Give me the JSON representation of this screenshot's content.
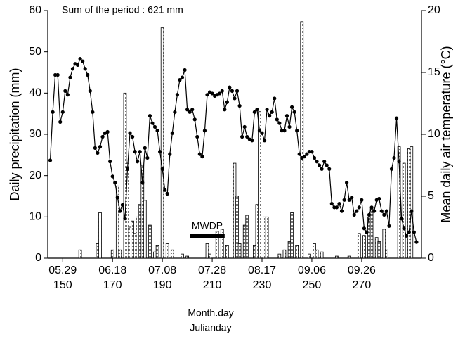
{
  "chart_data": {
    "type": "bar-line",
    "annotation": "Sum of the period : 621 mm",
    "period": {
      "label": "MWDP",
      "start": 201,
      "end": 215
    },
    "xlabel": "Month.day",
    "xlabel2": "Julianday",
    "ylabel": "Daily precipitation (mm)",
    "y2label": "Mean daily air temperature (°C)",
    "xlim": [
      144,
      294
    ],
    "ylim": [
      0,
      60
    ],
    "yticks": [
      0,
      10,
      20,
      30,
      40,
      50,
      60
    ],
    "y2lim": [
      0,
      20
    ],
    "y2ticks": [
      0,
      5,
      10,
      15,
      20
    ],
    "xticks": [
      {
        "value": 150,
        "label": "05.29"
      },
      {
        "value": 170,
        "label": "06.18"
      },
      {
        "value": 190,
        "label": "07.08"
      },
      {
        "value": 210,
        "label": "07.28"
      },
      {
        "value": 230,
        "label": "08.17"
      },
      {
        "value": 250,
        "label": "09.06"
      },
      {
        "value": 270,
        "label": "09.26"
      }
    ],
    "julian_ticks": [
      150,
      170,
      190,
      210,
      230,
      250,
      270
    ],
    "x": [
      145,
      146,
      147,
      148,
      149,
      150,
      151,
      152,
      153,
      154,
      155,
      156,
      157,
      158,
      159,
      160,
      161,
      162,
      163,
      164,
      165,
      166,
      167,
      168,
      169,
      170,
      171,
      172,
      173,
      174,
      175,
      176,
      177,
      178,
      179,
      180,
      181,
      182,
      183,
      184,
      185,
      186,
      187,
      188,
      189,
      190,
      191,
      192,
      193,
      194,
      195,
      196,
      197,
      198,
      199,
      200,
      201,
      202,
      203,
      204,
      205,
      206,
      207,
      208,
      209,
      210,
      211,
      212,
      213,
      214,
      215,
      216,
      217,
      218,
      219,
      220,
      221,
      222,
      223,
      224,
      225,
      226,
      227,
      228,
      229,
      230,
      231,
      232,
      233,
      234,
      235,
      236,
      237,
      238,
      239,
      240,
      241,
      242,
      243,
      244,
      245,
      246,
      247,
      248,
      249,
      250,
      251,
      252,
      253,
      254,
      255,
      256,
      257,
      258,
      259,
      260,
      261,
      262,
      263,
      264,
      265,
      266,
      267,
      268,
      269,
      270,
      271,
      272,
      273,
      274,
      275,
      276,
      277,
      278,
      279,
      280,
      281,
      282,
      283,
      284,
      285,
      286,
      287,
      288,
      289,
      290,
      291,
      292
    ],
    "series": [
      {
        "name": "Daily precipitation",
        "kind": "bar",
        "color": "#888888",
        "values": [
          0,
          0,
          0,
          0,
          0,
          0,
          0,
          0,
          0,
          0,
          0,
          0,
          2,
          0,
          0,
          0,
          0,
          0,
          0,
          3.5,
          11,
          0,
          0,
          0,
          0,
          2,
          0,
          17.5,
          2,
          0,
          40,
          23,
          7.5,
          9,
          6,
          10,
          13,
          22.5,
          14,
          0,
          8,
          0,
          1.5,
          3,
          0,
          55.8,
          0,
          3.5,
          0,
          2,
          0,
          0,
          0,
          1,
          0,
          0.5,
          0,
          0,
          0,
          0,
          0,
          0,
          0,
          3.5,
          1,
          0,
          0,
          6.5,
          0,
          7,
          0,
          3,
          0,
          0,
          23,
          15,
          3.5,
          0,
          8,
          10.5,
          0,
          0,
          3,
          13,
          35.5,
          0,
          10,
          10,
          0,
          0,
          0,
          0,
          1,
          0,
          2,
          0,
          4,
          11,
          0,
          3,
          0,
          57.3,
          0,
          0,
          1,
          0,
          3.5,
          2,
          0,
          1.5,
          0,
          0,
          0,
          0,
          0,
          0.5,
          0,
          0,
          0,
          0,
          0.5,
          0,
          0,
          0,
          6,
          0,
          5.5,
          0,
          10,
          12,
          0,
          5,
          4,
          0,
          7,
          2,
          0,
          0,
          0,
          0,
          27,
          0,
          23,
          0,
          26.5,
          27,
          0,
          0
        ]
      },
      {
        "name": "Mean daily air temperature",
        "kind": "line",
        "axis": "y2",
        "color": "#000000",
        "values": [
          7.9,
          11.8,
          14.8,
          14.8,
          11.0,
          11.8,
          13.5,
          13.2,
          14.6,
          15.3,
          15.7,
          15.6,
          16.1,
          15.9,
          15.3,
          14.8,
          13.5,
          11.8,
          8.9,
          8.5,
          9.0,
          9.8,
          10.1,
          10.2,
          7.8,
          6.6,
          6.1,
          4.9,
          3.8,
          4.3,
          3.2,
          7.2,
          10.1,
          9.8,
          8.6,
          7.8,
          8.6,
          6.1,
          8.9,
          8.1,
          11.5,
          10.9,
          10.6,
          10.3,
          8.6,
          7.2,
          5.5,
          5.2,
          8.4,
          10.1,
          11.8,
          13.2,
          14.4,
          14.6,
          15.2,
          12.0,
          11.8,
          12.0,
          11.2,
          9.8,
          8.4,
          8.2,
          10.3,
          13.2,
          13.4,
          13.3,
          13.1,
          13.2,
          13.3,
          13.5,
          12.0,
          12.6,
          13.8,
          13.5,
          12.9,
          13.5,
          12.3,
          9.8,
          10.6,
          9.8,
          9.6,
          9.5,
          11.8,
          12.0,
          10.3,
          10.1,
          9.5,
          12.0,
          11.5,
          11.8,
          12.9,
          11.2,
          10.9,
          10.3,
          10.3,
          11.5,
          10.6,
          12.2,
          11.8,
          10.3,
          8.4,
          8.1,
          8.2,
          8.4,
          8.6,
          8.6,
          8.1,
          7.8,
          7.5,
          7.2,
          7.8,
          7.5,
          7.2,
          4.4,
          4.1,
          4.1,
          4.4,
          3.8,
          4.7,
          6.1,
          4.7,
          4.9,
          3.5,
          3.8,
          4.1,
          4.7,
          2.4,
          2.1,
          3.5,
          4.1,
          3.8,
          4.7,
          4.8,
          3.8,
          3.5,
          3.8,
          2.6,
          7.2,
          8.1,
          11.3,
          7.8,
          3.2,
          2.4,
          1.8,
          2.1,
          3.8,
          2.1,
          1.3
        ]
      }
    ]
  }
}
